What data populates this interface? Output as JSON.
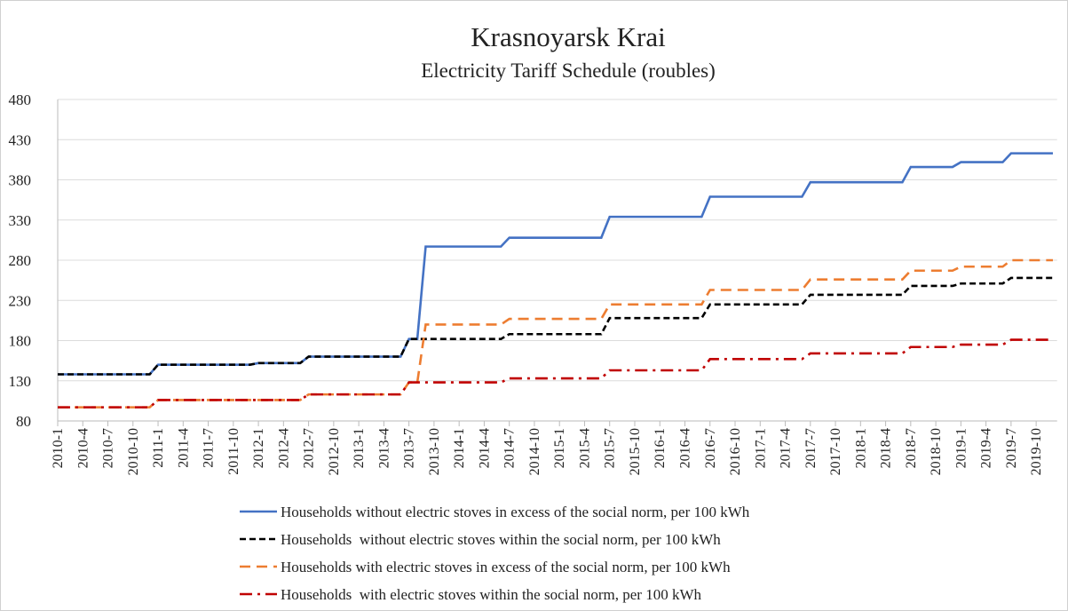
{
  "chart_data": {
    "type": "line",
    "title": "Krasnoyarsk Krai",
    "subtitle": "Electricity Tariff Schedule (roubles)",
    "categories": [
      "2010-1",
      null,
      null,
      "2010-4",
      null,
      null,
      "2010-7",
      null,
      null,
      "2010-10",
      null,
      null,
      "2011-1",
      null,
      null,
      "2011-4",
      null,
      null,
      "2011-7",
      null,
      null,
      "2011-10",
      null,
      null,
      "2012-1",
      null,
      null,
      "2012-4",
      null,
      null,
      "2012-7",
      null,
      null,
      "2012-10",
      null,
      null,
      "2013-1",
      null,
      null,
      "2013-4",
      null,
      null,
      "2013-7",
      null,
      null,
      "2013-10",
      null,
      null,
      "2014-1",
      null,
      null,
      "2014-4",
      null,
      null,
      "2014-7",
      null,
      null,
      "2014-10",
      null,
      null,
      "2015-1",
      null,
      null,
      "2015-4",
      null,
      null,
      "2015-7",
      null,
      null,
      "2015-10",
      null,
      null,
      "2016-1",
      null,
      null,
      "2016-4",
      null,
      null,
      "2016-7",
      null,
      null,
      "2016-10",
      null,
      null,
      "2017-1",
      null,
      null,
      "2017-4",
      null,
      null,
      "2017-7",
      null,
      null,
      "2017-10",
      null,
      null,
      "2018-1",
      null,
      null,
      "2018-4",
      null,
      null,
      "2018-7",
      null,
      null,
      "2018-10",
      null,
      null,
      "2019-1",
      null,
      null,
      "2019-4",
      null,
      null,
      "2019-7",
      null,
      null,
      "2019-10",
      null,
      null
    ],
    "series": [
      {
        "name": "Households without electric stoves in excess of the social norm, per 100 kWh",
        "color": "#4472c4",
        "values": [
          138,
          138,
          138,
          138,
          138,
          138,
          138,
          138,
          138,
          138,
          138,
          138,
          150,
          150,
          150,
          150,
          150,
          150,
          150,
          150,
          150,
          150,
          150,
          150,
          152,
          152,
          152,
          152,
          152,
          152,
          160,
          160,
          160,
          160,
          160,
          160,
          160,
          160,
          160,
          160,
          160,
          160,
          182,
          182,
          297,
          297,
          297,
          297,
          297,
          297,
          297,
          297,
          297,
          297,
          308,
          308,
          308,
          308,
          308,
          308,
          308,
          308,
          308,
          308,
          308,
          308,
          334,
          334,
          334,
          334,
          334,
          334,
          334,
          334,
          334,
          334,
          334,
          334,
          359,
          359,
          359,
          359,
          359,
          359,
          359,
          359,
          359,
          359,
          359,
          359,
          377,
          377,
          377,
          377,
          377,
          377,
          377,
          377,
          377,
          377,
          377,
          377,
          396,
          396,
          396,
          396,
          396,
          396,
          402,
          402,
          402,
          402,
          402,
          402,
          413,
          413,
          413,
          413,
          413,
          413
        ]
      },
      {
        "name": "Households  without electric stoves within the social norm, per 100 kWh",
        "color": "#000000",
        "values": [
          138,
          138,
          138,
          138,
          138,
          138,
          138,
          138,
          138,
          138,
          138,
          138,
          150,
          150,
          150,
          150,
          150,
          150,
          150,
          150,
          150,
          150,
          150,
          150,
          152,
          152,
          152,
          152,
          152,
          152,
          160,
          160,
          160,
          160,
          160,
          160,
          160,
          160,
          160,
          160,
          160,
          160,
          182,
          182,
          182,
          182,
          182,
          182,
          182,
          182,
          182,
          182,
          182,
          182,
          188,
          188,
          188,
          188,
          188,
          188,
          188,
          188,
          188,
          188,
          188,
          188,
          208,
          208,
          208,
          208,
          208,
          208,
          208,
          208,
          208,
          208,
          208,
          208,
          225,
          225,
          225,
          225,
          225,
          225,
          225,
          225,
          225,
          225,
          225,
          225,
          237,
          237,
          237,
          237,
          237,
          237,
          237,
          237,
          237,
          237,
          237,
          237,
          248,
          248,
          248,
          248,
          248,
          248,
          251,
          251,
          251,
          251,
          251,
          251,
          258,
          258,
          258,
          258,
          258,
          258
        ]
      },
      {
        "name": "Households with electric stoves in excess of the social norm, per 100 kWh",
        "color": "#ed7d31",
        "values": [
          97,
          97,
          97,
          97,
          97,
          97,
          97,
          97,
          97,
          97,
          97,
          97,
          106,
          106,
          106,
          106,
          106,
          106,
          106,
          106,
          106,
          106,
          106,
          106,
          106,
          106,
          106,
          106,
          106,
          106,
          113,
          113,
          113,
          113,
          113,
          113,
          113,
          113,
          113,
          113,
          113,
          113,
          128,
          128,
          200,
          200,
          200,
          200,
          200,
          200,
          200,
          200,
          200,
          200,
          207,
          207,
          207,
          207,
          207,
          207,
          207,
          207,
          207,
          207,
          207,
          207,
          225,
          225,
          225,
          225,
          225,
          225,
          225,
          225,
          225,
          225,
          225,
          225,
          243,
          243,
          243,
          243,
          243,
          243,
          243,
          243,
          243,
          243,
          243,
          243,
          256,
          256,
          256,
          256,
          256,
          256,
          256,
          256,
          256,
          256,
          256,
          256,
          267,
          267,
          267,
          267,
          267,
          267,
          272,
          272,
          272,
          272,
          272,
          272,
          280,
          280,
          280,
          280,
          280,
          280
        ]
      },
      {
        "name": "Households  with electric stoves within the social norm, per 100 kWh",
        "color": "#c00000",
        "values": [
          97,
          97,
          97,
          97,
          97,
          97,
          97,
          97,
          97,
          97,
          97,
          97,
          106,
          106,
          106,
          106,
          106,
          106,
          106,
          106,
          106,
          106,
          106,
          106,
          106,
          106,
          106,
          106,
          106,
          106,
          113,
          113,
          113,
          113,
          113,
          113,
          113,
          113,
          113,
          113,
          113,
          113,
          128,
          128,
          128,
          128,
          128,
          128,
          128,
          128,
          128,
          128,
          128,
          128,
          133,
          133,
          133,
          133,
          133,
          133,
          133,
          133,
          133,
          133,
          133,
          133,
          143,
          143,
          143,
          143,
          143,
          143,
          143,
          143,
          143,
          143,
          143,
          143,
          157,
          157,
          157,
          157,
          157,
          157,
          157,
          157,
          157,
          157,
          157,
          157,
          164,
          164,
          164,
          164,
          164,
          164,
          164,
          164,
          164,
          164,
          164,
          164,
          172,
          172,
          172,
          172,
          172,
          172,
          175,
          175,
          175,
          175,
          175,
          175,
          181,
          181,
          181,
          181,
          181,
          181
        ]
      }
    ],
    "ylim": [
      80,
      480
    ],
    "yticks": [
      80,
      130,
      180,
      230,
      280,
      330,
      380,
      430,
      480
    ],
    "grid": true
  }
}
